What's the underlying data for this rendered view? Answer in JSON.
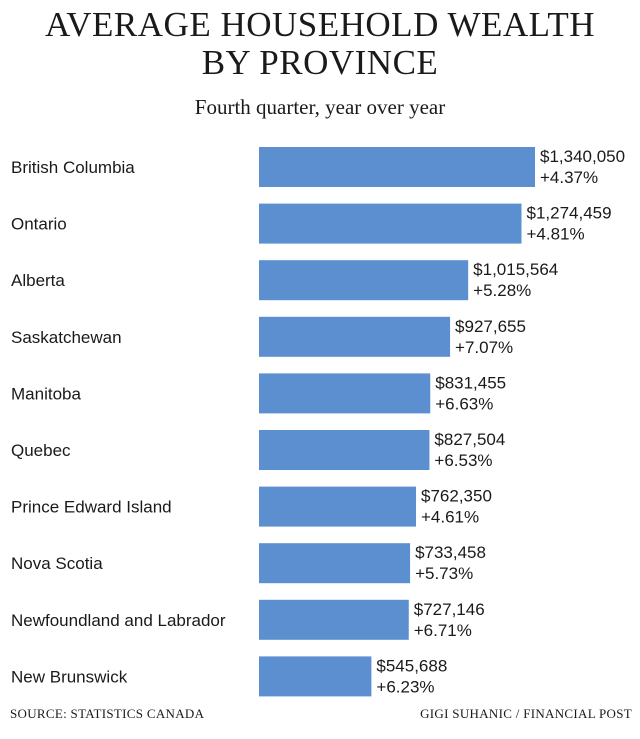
{
  "chart_data": {
    "type": "bar",
    "orientation": "horizontal",
    "title_lines": [
      "AVERAGE HOUSEHOLD WEALTH",
      "BY PROVINCE"
    ],
    "subtitle": "Fourth quarter, year over year",
    "categories": [
      "British Columbia",
      "Ontario",
      "Alberta",
      "Saskatchewan",
      "Manitoba",
      "Quebec",
      "Prince Edward Island",
      "Nova Scotia",
      "Newfoundland and Labrador",
      "New Brunswick"
    ],
    "values": [
      1340050,
      1274459,
      1015564,
      927655,
      831455,
      827504,
      762350,
      733458,
      727146,
      545688
    ],
    "value_labels": [
      "$1,340,050",
      "$1,274,459",
      "$1,015,564",
      "$927,655",
      "$831,455",
      "$827,504",
      "$762,350",
      "$733,458",
      "$727,146",
      "$545,688"
    ],
    "change_labels": [
      "+4.37%",
      "+4.81%",
      "+5.28%",
      "+7.07%",
      "+6.63%",
      "+6.53%",
      "+4.61%",
      "+5.73%",
      "+6.71%",
      "+6.23%"
    ],
    "xlim": [
      0,
      1340050
    ],
    "grid": false,
    "bar_color": "#5b8fcf"
  },
  "footer": {
    "source": "SOURCE: STATISTICS CANADA",
    "credit": "GIGI SUHANIC / FINANCIAL POST"
  }
}
